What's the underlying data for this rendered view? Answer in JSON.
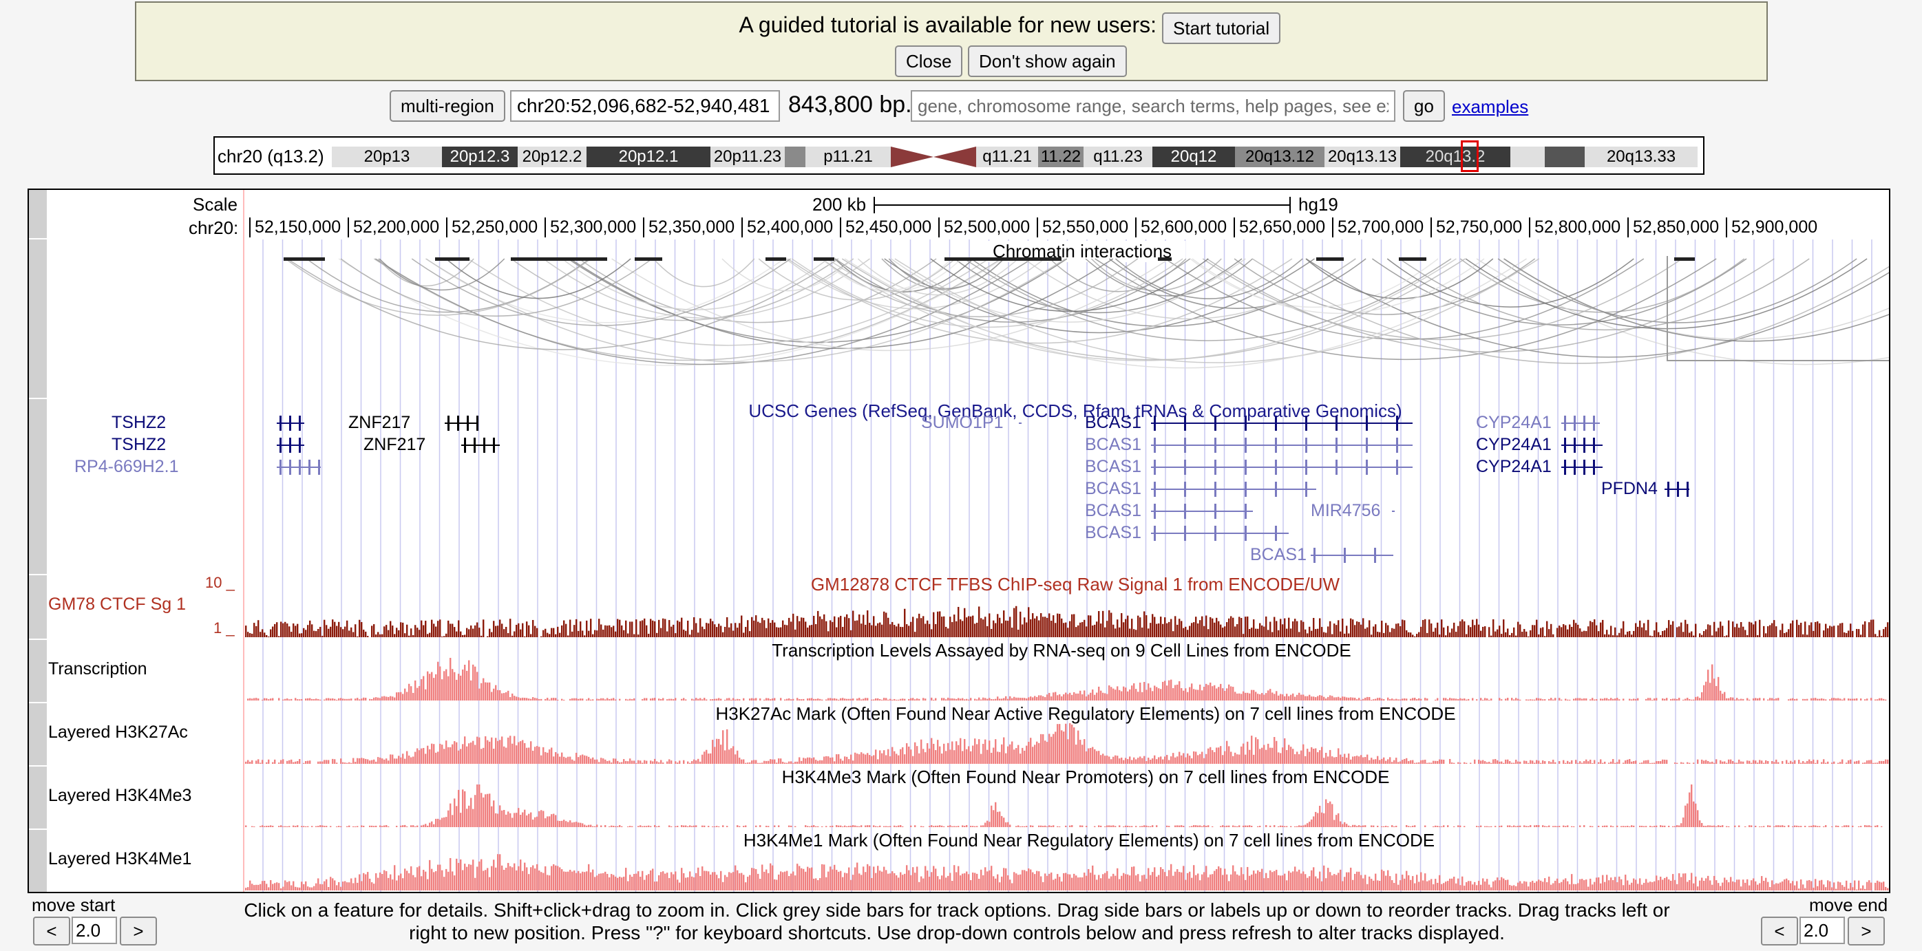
{
  "tutorial": {
    "message": "A guided tutorial is available for new users:",
    "start_label": "Start tutorial",
    "close_label": "Close",
    "dont_show_label": "Don't show again"
  },
  "position_bar": {
    "multi_region_label": "multi-region",
    "position": "chr20:52,096,682-52,940,481",
    "size": "843,800 bp.",
    "search_placeholder": "gene, chromosome range, search terms, help pages, see examples",
    "go_label": "go",
    "examples_label": "examples"
  },
  "ideogram": {
    "label": "chr20 (q13.2)",
    "bands": [
      "20p13",
      "20p12.3",
      "20p12.2",
      "20p12.1",
      "20p11.23",
      "p11.21",
      "q11.21",
      "11.22",
      "q11.23",
      "20q12",
      "20q13.12",
      "20q13.13",
      "20q13.2",
      "20q13.33"
    ]
  },
  "ruler": {
    "scale_label": "Scale",
    "scale_value": "200 kb",
    "assembly": "hg19",
    "chrom_label": "chr20:",
    "ticks": [
      "52,150,000",
      "52,200,000",
      "52,250,000",
      "52,300,000",
      "52,350,000",
      "52,400,000",
      "52,450,000",
      "52,500,000",
      "52,550,000",
      "52,600,000",
      "52,650,000",
      "52,700,000",
      "52,750,000",
      "52,800,000",
      "52,850,000",
      "52,900,000"
    ]
  },
  "tracks": {
    "interactions_title": "Chromatin interactions",
    "genes_title": "UCSC Genes (RefSeq, GenBank, CCDS, Rfam, tRNAs & Comparative Genomics)",
    "genes": [
      {
        "name": "TSHZ2",
        "color": "#0c0c78"
      },
      {
        "name": "TSHZ2",
        "color": "#0c0c78"
      },
      {
        "name": "RP4-669H2.1",
        "color": "#7a7ac0"
      },
      {
        "name": "ZNF217",
        "color": "#000000"
      },
      {
        "name": "ZNF217",
        "color": "#000000"
      },
      {
        "name": "SUMO1P1",
        "color": "#7a7ac0"
      },
      {
        "name": "BCAS1",
        "color": "#0c0c78"
      },
      {
        "name": "BCAS1",
        "color": "#7a7ac0"
      },
      {
        "name": "BCAS1",
        "color": "#7a7ac0"
      },
      {
        "name": "BCAS1",
        "color": "#7a7ac0"
      },
      {
        "name": "BCAS1",
        "color": "#7a7ac0"
      },
      {
        "name": "BCAS1",
        "color": "#7a7ac0"
      },
      {
        "name": "MIR4756",
        "color": "#7a7ac0"
      },
      {
        "name": "BCAS1",
        "color": "#7a7ac0"
      },
      {
        "name": "CYP24A1",
        "color": "#7a7ac0"
      },
      {
        "name": "CYP24A1",
        "color": "#0c0c78"
      },
      {
        "name": "CYP24A1",
        "color": "#0c0c78"
      },
      {
        "name": "PFDN4",
        "color": "#0c0c78"
      }
    ],
    "ctcf_label": "GM78 CTCF Sg 1",
    "ctcf_title": "GM12878 CTCF TFBS ChIP-seq Raw Signal 1 from ENCODE/UW",
    "ctcf_ymax": "10 _",
    "ctcf_ymin": "1 _",
    "transcription_label": "Transcription",
    "transcription_title": "Transcription Levels Assayed by RNA-seq on 9 Cell Lines from ENCODE",
    "h3k27ac_label": "Layered H3K27Ac",
    "h3k27ac_title": "H3K27Ac Mark (Often Found Near Active Regulatory Elements) on 7 cell lines from ENCODE",
    "h3k4me3_label": "Layered H3K4Me3",
    "h3k4me3_title": "H3K4Me3 Mark (Often Found Near Promoters) on 7 cell lines from ENCODE",
    "h3k4me1_label": "Layered H3K4Me1",
    "h3k4me1_title": "H3K4Me1 Mark (Often Found Near Regulatory Elements) on 7 cell lines from ENCODE"
  },
  "footer": {
    "move_start_label": "move start",
    "move_end_label": "move end",
    "move_start_value": "2.0",
    "move_end_value": "2.0",
    "left_arrow": "<",
    "right_arrow": ">",
    "help_line1": "Click on a feature for details. Shift+click+drag to zoom in. Click grey side bars for track options. Drag side bars or labels up or down to reorder tracks. Drag tracks left or",
    "help_line2": "right to new position. Press \"?\" for keyboard shortcuts. Use drop-down controls below and press refresh to alter tracks displayed."
  },
  "colors": {
    "ctcf": "#8b1a0a",
    "signal": "#f08080",
    "gene_dark": "#0c0c78",
    "gene_light": "#7a7ac0",
    "ctcf_text": "#b03020"
  }
}
